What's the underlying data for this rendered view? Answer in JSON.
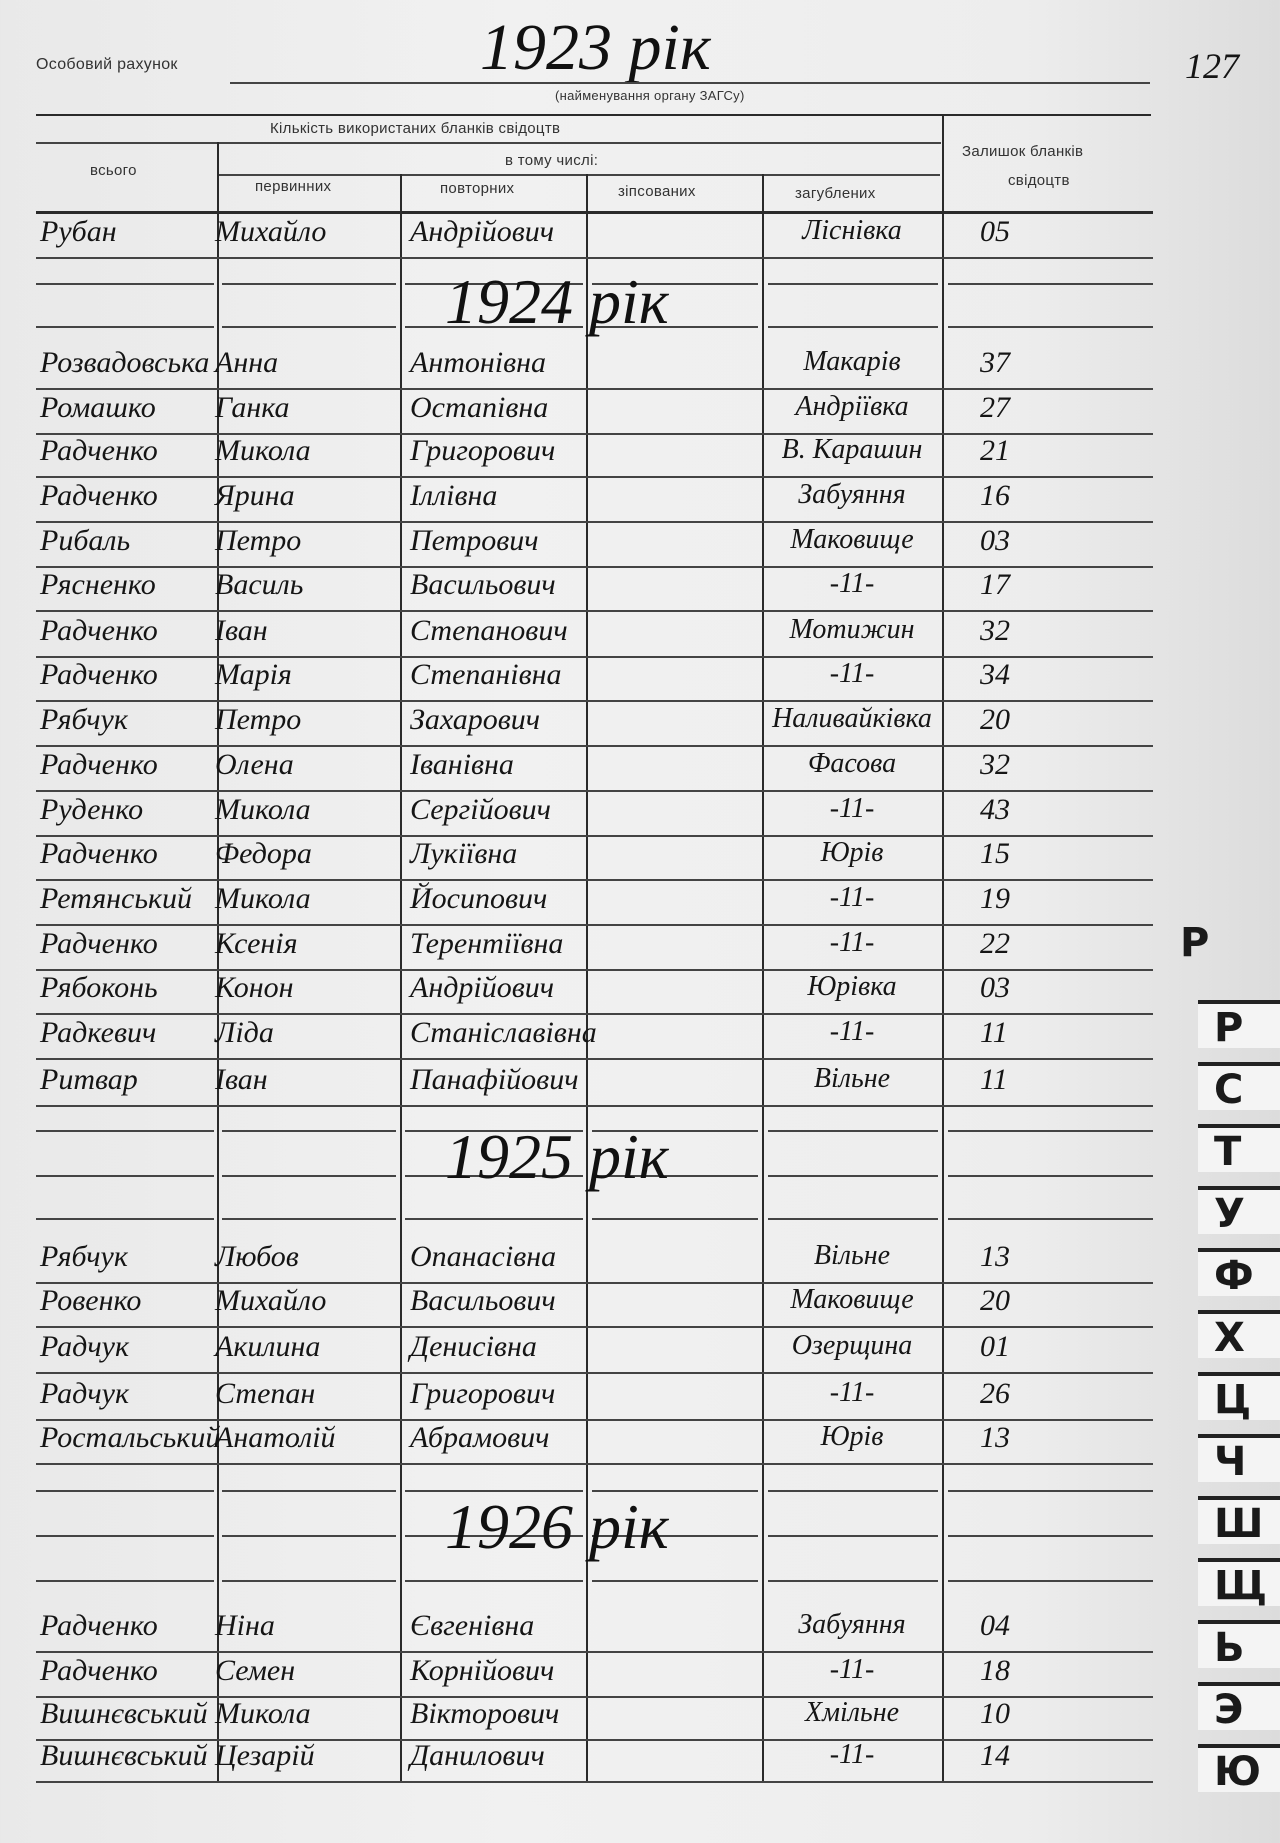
{
  "header": {
    "account_label": "Особовий рахунок",
    "account_value": "1923 рік",
    "authority_caption": "(найменування органу ЗАГСу)",
    "page_number": "127"
  },
  "table_header": {
    "used_blanks": "Кількість використаних бланків свідоцтв",
    "total": "всього",
    "including": "в тому числі:",
    "primary": "первинних",
    "repeated": "повторних",
    "spoiled": "зіпсованих",
    "lost": "загублених",
    "remaining_line1": "Залишок бланків",
    "remaining_line2": "свідоцтв"
  },
  "sections": [
    {
      "year": "1923 рік",
      "rows": [
        {
          "surname": "Рубан",
          "name": "Михайло",
          "patronymic": "Андрійович",
          "place": "Ліснівка",
          "number": "05"
        }
      ]
    },
    {
      "year": "1924 рік",
      "rows": [
        {
          "surname": "Розвадовська",
          "name": "Анна",
          "patronymic": "Антонівна",
          "place": "Макарів",
          "number": "37"
        },
        {
          "surname": "Ромашко",
          "name": "Ганка",
          "patronymic": "Остапівна",
          "place": "Андріївка",
          "number": "27"
        },
        {
          "surname": "Радченко",
          "name": "Микола",
          "patronymic": "Григорович",
          "place": "В. Карашин",
          "number": "21"
        },
        {
          "surname": "Радченко",
          "name": "Ярина",
          "patronymic": "Іллівна",
          "place": "Забуяння",
          "number": "16"
        },
        {
          "surname": "Рибаль",
          "name": "Петро",
          "patronymic": "Петрович",
          "place": "Маковище",
          "number": "03"
        },
        {
          "surname": "Рясненко",
          "name": "Василь",
          "patronymic": "Васильович",
          "place": "-11-",
          "number": "17"
        },
        {
          "surname": "Радченко",
          "name": "Іван",
          "patronymic": "Степанович",
          "place": "Мотижин",
          "number": "32"
        },
        {
          "surname": "Радченко",
          "name": "Марія",
          "patronymic": "Степанівна",
          "place": "-11-",
          "number": "34"
        },
        {
          "surname": "Рябчук",
          "name": "Петро",
          "patronymic": "Захарович",
          "place": "Наливайківка",
          "number": "20"
        },
        {
          "surname": "Радченко",
          "name": "Олена",
          "patronymic": "Іванівна",
          "place": "Фасова",
          "number": "32"
        },
        {
          "surname": "Руденко",
          "name": "Микола",
          "patronymic": "Сергійович",
          "place": "-11-",
          "number": "43"
        },
        {
          "surname": "Радченко",
          "name": "Федора",
          "patronymic": "Лукіївна",
          "place": "Юрів",
          "number": "15"
        },
        {
          "surname": "Ретянський",
          "name": "Микола",
          "patronymic": "Йосипович",
          "place": "-11-",
          "number": "19"
        },
        {
          "surname": "Радченко",
          "name": "Ксенія",
          "patronymic": "Терентіївна",
          "place": "-11-",
          "number": "22"
        },
        {
          "surname": "Рябоконь",
          "name": "Конон",
          "patronymic": "Андрійович",
          "place": "Юрівка",
          "number": "03"
        },
        {
          "surname": "Радкевич",
          "name": "Ліда",
          "patronymic": "Станіславівна",
          "place": "-11-",
          "number": "11"
        },
        {
          "surname": "Ритвар",
          "name": "Іван",
          "patronymic": "Панафійович",
          "place": "Вільне",
          "number": "11"
        }
      ]
    },
    {
      "year": "1925 рік",
      "rows": [
        {
          "surname": "Рябчук",
          "name": "Любов",
          "patronymic": "Опанасівна",
          "place": "Вільне",
          "number": "13"
        },
        {
          "surname": "Ровенко",
          "name": "Михайло",
          "patronymic": "Васильович",
          "place": "Маковище",
          "number": "20"
        },
        {
          "surname": "Радчук",
          "name": "Акилина",
          "patronymic": "Денисівна",
          "place": "Озерщина",
          "number": "01"
        },
        {
          "surname": "Радчук",
          "name": "Степан",
          "patronymic": "Григорович",
          "place": "-11-",
          "number": "26"
        },
        {
          "surname": "Ростальський",
          "name": "Анатолій",
          "patronymic": "Абрамович",
          "place": "Юрів",
          "number": "13"
        }
      ]
    },
    {
      "year": "1926 рік",
      "rows": [
        {
          "surname": "Радченко",
          "name": "Ніна",
          "patronymic": "Євгенівна",
          "place": "Забуяння",
          "number": "04"
        },
        {
          "surname": "Радченко",
          "name": "Семен",
          "patronymic": "Корнійович",
          "place": "-11-",
          "number": "18"
        },
        {
          "surname": "Вишнєвський",
          "name": "Микола",
          "patronymic": "Вікторович",
          "place": "Хмільне",
          "number": "10"
        },
        {
          "surname": "Вишнєвський",
          "name": "Цезарій",
          "patronymic": "Данилович",
          "place": "-11-",
          "number": "14"
        }
      ]
    }
  ],
  "index_tabs": [
    "Р",
    "С",
    "Т",
    "У",
    "Ф",
    "Х",
    "Ц",
    "Ч",
    "Ш",
    "Щ",
    "Ь",
    "Э",
    "Ю"
  ]
}
